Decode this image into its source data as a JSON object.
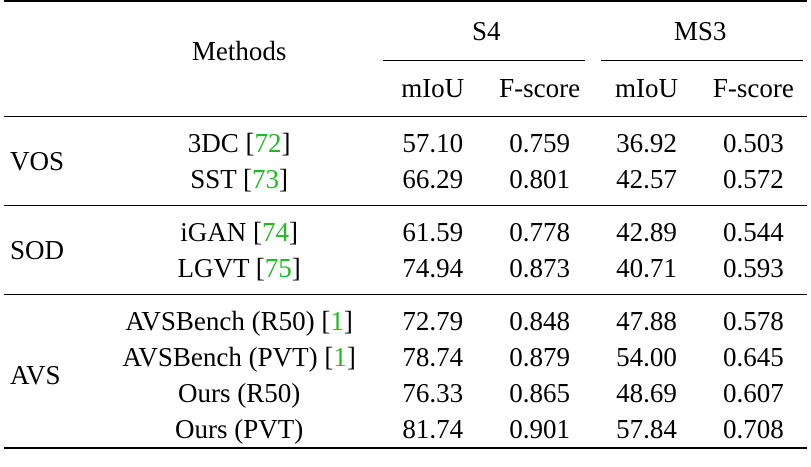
{
  "header": {
    "methods_label": "Methods",
    "group_s4": "S4",
    "group_ms3": "MS3",
    "metric_miou": "mIoU",
    "metric_fscore": "F-score"
  },
  "groups": [
    {
      "label": "VOS",
      "rows": [
        {
          "method": "3DC",
          "cite": "72",
          "s4_miou": "57.10",
          "s4_f": "0.759",
          "ms3_miou": "36.92",
          "ms3_f": "0.503"
        },
        {
          "method": "SST",
          "cite": "73",
          "s4_miou": "66.29",
          "s4_f": "0.801",
          "ms3_miou": "42.57",
          "ms3_f": "0.572"
        }
      ]
    },
    {
      "label": "SOD",
      "rows": [
        {
          "method": "iGAN",
          "cite": "74",
          "s4_miou": "61.59",
          "s4_f": "0.778",
          "ms3_miou": "42.89",
          "ms3_f": "0.544"
        },
        {
          "method": "LGVT",
          "cite": "75",
          "s4_miou": "74.94",
          "s4_f": "0.873",
          "ms3_miou": "40.71",
          "ms3_f": "0.593"
        }
      ]
    },
    {
      "label": "AVS",
      "rows": [
        {
          "method": "AVSBench (R50)",
          "cite": "1",
          "s4_miou": "72.79",
          "s4_f": "0.848",
          "ms3_miou": "47.88",
          "ms3_f": "0.578"
        },
        {
          "method": "AVSBench (PVT)",
          "cite": "1",
          "s4_miou": "78.74",
          "s4_f": "0.879",
          "ms3_miou": "54.00",
          "ms3_f": "0.645"
        },
        {
          "method": "Ours (R50)",
          "cite": "",
          "s4_miou": "76.33",
          "s4_f": "0.865",
          "ms3_miou": "48.69",
          "ms3_f": "0.607"
        },
        {
          "method": "Ours (PVT)",
          "cite": "",
          "s4_miou": "81.74",
          "s4_f": "0.901",
          "ms3_miou": "57.84",
          "ms3_f": "0.708"
        }
      ]
    }
  ],
  "colors": {
    "citation": "#22bb22",
    "text": "#000000"
  }
}
